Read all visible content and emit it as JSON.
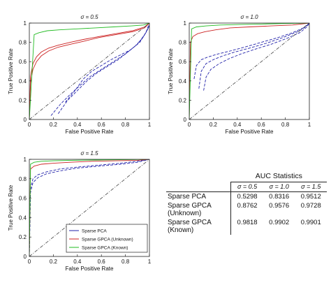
{
  "chart_data": [
    {
      "type": "line",
      "title": "σ = 0.5",
      "xlabel": "False Positive Rate",
      "ylabel": "True Positive Rate",
      "xlim": [
        0,
        1
      ],
      "ylim": [
        0,
        1
      ],
      "xticks": [
        "0",
        "0.2",
        "0.4",
        "0.6",
        "0.8",
        "1"
      ],
      "yticks": [
        "0",
        "0.2",
        "0.4",
        "0.6",
        "0.8",
        "1"
      ],
      "series": [
        {
          "color": "#2222aa",
          "style": "dash",
          "x": [
            0.18,
            0.26,
            0.34,
            0.42,
            0.5,
            0.6,
            0.7,
            0.8,
            0.88,
            0.94,
            0.98,
            1.0
          ],
          "y": [
            0.04,
            0.16,
            0.26,
            0.35,
            0.44,
            0.52,
            0.6,
            0.68,
            0.76,
            0.84,
            0.92,
            0.98
          ]
        },
        {
          "color": "#2222aa",
          "style": "dash",
          "x": [
            0.24,
            0.32,
            0.4,
            0.48,
            0.56,
            0.65,
            0.74,
            0.82,
            0.9,
            0.96,
            1.0
          ],
          "y": [
            0.06,
            0.2,
            0.3,
            0.4,
            0.48,
            0.55,
            0.62,
            0.7,
            0.78,
            0.88,
            0.97
          ]
        },
        {
          "color": "#2222aa",
          "style": "dash",
          "x": [
            0.3,
            0.38,
            0.45,
            0.52,
            0.6,
            0.68,
            0.76,
            0.84,
            0.92,
            0.97,
            1.0
          ],
          "y": [
            0.18,
            0.3,
            0.42,
            0.5,
            0.56,
            0.62,
            0.67,
            0.72,
            0.8,
            0.9,
            1.0
          ]
        },
        {
          "color": "#cc2222",
          "style": "solid",
          "x": [
            0,
            0.01,
            0.03,
            0.06,
            0.1,
            0.16,
            0.24,
            0.34,
            0.45,
            0.58,
            0.72,
            0.86,
            0.96,
            1.0
          ],
          "y": [
            0,
            0.45,
            0.58,
            0.65,
            0.7,
            0.74,
            0.77,
            0.8,
            0.83,
            0.86,
            0.89,
            0.92,
            0.96,
            1.0
          ]
        },
        {
          "color": "#cc2222",
          "style": "solid",
          "x": [
            0,
            0.01,
            0.03,
            0.06,
            0.1,
            0.16,
            0.24,
            0.34,
            0.45,
            0.58,
            0.72,
            0.86,
            0.96,
            1.0
          ],
          "y": [
            0,
            0.38,
            0.52,
            0.6,
            0.66,
            0.71,
            0.75,
            0.78,
            0.81,
            0.85,
            0.88,
            0.91,
            0.95,
            1.0
          ]
        },
        {
          "color": "#22bb22",
          "style": "solid",
          "x": [
            0,
            0.04,
            0.08,
            0.15,
            0.25,
            0.4,
            0.55,
            0.7,
            0.85,
            0.95,
            1.0
          ],
          "y": [
            0,
            0.88,
            0.9,
            0.92,
            0.93,
            0.94,
            0.95,
            0.96,
            0.97,
            0.98,
            1.0
          ]
        },
        {
          "color": "#444444",
          "style": "dashdot",
          "x": [
            0,
            1
          ],
          "y": [
            0,
            1
          ]
        }
      ]
    },
    {
      "type": "line",
      "title": "σ = 1.0",
      "xlabel": "False Positive Rate",
      "ylabel": "True Positive Rate",
      "xlim": [
        0,
        1
      ],
      "ylim": [
        0,
        1
      ],
      "xticks": [
        "0",
        "0.2",
        "0.4",
        "0.6",
        "0.8",
        "1"
      ],
      "yticks": [
        "0",
        "0.2",
        "0.4",
        "0.6",
        "0.8",
        "1"
      ],
      "series": [
        {
          "color": "#2222aa",
          "style": "dash",
          "x": [
            0.04,
            0.06,
            0.1,
            0.16,
            0.24,
            0.34,
            0.46,
            0.6,
            0.74,
            0.86,
            0.95,
            1.0
          ],
          "y": [
            0.42,
            0.56,
            0.62,
            0.65,
            0.68,
            0.71,
            0.75,
            0.8,
            0.85,
            0.9,
            0.95,
            1.0
          ]
        },
        {
          "color": "#2222aa",
          "style": "dash",
          "x": [
            0.08,
            0.1,
            0.14,
            0.2,
            0.28,
            0.38,
            0.5,
            0.64,
            0.78,
            0.9,
            0.97,
            1.0
          ],
          "y": [
            0.32,
            0.5,
            0.58,
            0.62,
            0.66,
            0.7,
            0.74,
            0.79,
            0.85,
            0.91,
            0.96,
            1.0
          ]
        },
        {
          "color": "#2222aa",
          "style": "dash",
          "x": [
            0.12,
            0.14,
            0.18,
            0.25,
            0.33,
            0.43,
            0.55,
            0.68,
            0.81,
            0.92,
            0.98,
            1.0
          ],
          "y": [
            0.3,
            0.44,
            0.52,
            0.58,
            0.63,
            0.68,
            0.73,
            0.78,
            0.84,
            0.9,
            0.96,
            1.0
          ]
        },
        {
          "color": "#cc2222",
          "style": "solid",
          "x": [
            0,
            0.01,
            0.03,
            0.07,
            0.13,
            0.22,
            0.34,
            0.5,
            0.68,
            0.86,
            1.0
          ],
          "y": [
            0,
            0.8,
            0.86,
            0.89,
            0.91,
            0.93,
            0.95,
            0.96,
            0.97,
            0.98,
            1.0
          ]
        },
        {
          "color": "#22bb22",
          "style": "solid",
          "x": [
            0,
            0.02,
            0.06,
            0.14,
            0.26,
            0.42,
            0.6,
            0.8,
            1.0
          ],
          "y": [
            0,
            0.94,
            0.96,
            0.97,
            0.98,
            0.985,
            0.99,
            0.995,
            1.0
          ]
        },
        {
          "color": "#444444",
          "style": "dashdot",
          "x": [
            0,
            1
          ],
          "y": [
            0,
            1
          ]
        }
      ]
    },
    {
      "type": "line",
      "title": "σ = 1.5",
      "xlabel": "False Positive Rate",
      "ylabel": "True Positive Rate",
      "xlim": [
        0,
        1
      ],
      "ylim": [
        0,
        1
      ],
      "xticks": [
        "0",
        "0.2",
        "0.4",
        "0.6",
        "0.8",
        "1"
      ],
      "yticks": [
        "0",
        "0.2",
        "0.4",
        "0.6",
        "0.8",
        "1"
      ],
      "legend": [
        "Sparse PCA",
        "Sparse GPCA (Unknown)",
        "Sparse GPCA (Known)"
      ],
      "legend_colors": [
        "#2222aa",
        "#cc2222",
        "#22bb22"
      ],
      "legend_position": "bottom-right",
      "series": [
        {
          "color": "#2222aa",
          "style": "dash",
          "x": [
            0,
            0.01,
            0.03,
            0.07,
            0.14,
            0.25,
            0.4,
            0.58,
            0.76,
            0.9,
            1.0
          ],
          "y": [
            0,
            0.7,
            0.8,
            0.84,
            0.87,
            0.9,
            0.92,
            0.94,
            0.96,
            0.98,
            1.0
          ]
        },
        {
          "color": "#2222aa",
          "style": "dash",
          "x": [
            0,
            0.01,
            0.03,
            0.07,
            0.14,
            0.25,
            0.4,
            0.58,
            0.76,
            0.9,
            1.0
          ],
          "y": [
            0,
            0.66,
            0.76,
            0.81,
            0.85,
            0.88,
            0.91,
            0.93,
            0.95,
            0.97,
            1.0
          ]
        },
        {
          "color": "#cc2222",
          "style": "solid",
          "x": [
            0,
            0.01,
            0.04,
            0.1,
            0.2,
            0.34,
            0.52,
            0.72,
            0.9,
            1.0
          ],
          "y": [
            0,
            0.9,
            0.93,
            0.95,
            0.96,
            0.97,
            0.98,
            0.985,
            0.99,
            1.0
          ]
        },
        {
          "color": "#22bb22",
          "style": "solid",
          "x": [
            0,
            0.01,
            0.04,
            0.1,
            0.2,
            0.35,
            0.55,
            0.75,
            1.0
          ],
          "y": [
            0,
            0.95,
            0.97,
            0.98,
            0.985,
            0.99,
            0.993,
            0.996,
            1.0
          ]
        },
        {
          "color": "#444444",
          "style": "dashdot",
          "x": [
            0,
            1
          ],
          "y": [
            0,
            1
          ]
        }
      ]
    },
    {
      "type": "table",
      "title": "AUC Statistics",
      "columns": [
        "σ = 0.5",
        "σ = 1.0",
        "σ = 1.5"
      ],
      "rows": [
        {
          "label": "Sparse PCA",
          "values": [
            "0.5298",
            "0.8316",
            "0.9512"
          ]
        },
        {
          "label": "Sparse GPCA\n(Unknown)",
          "values": [
            "0.8762",
            "0.9576",
            "0.9728"
          ]
        },
        {
          "label": "Sparse GPCA\n(Known)",
          "values": [
            "0.9818",
            "0.9902",
            "0.9901"
          ]
        }
      ]
    }
  ]
}
